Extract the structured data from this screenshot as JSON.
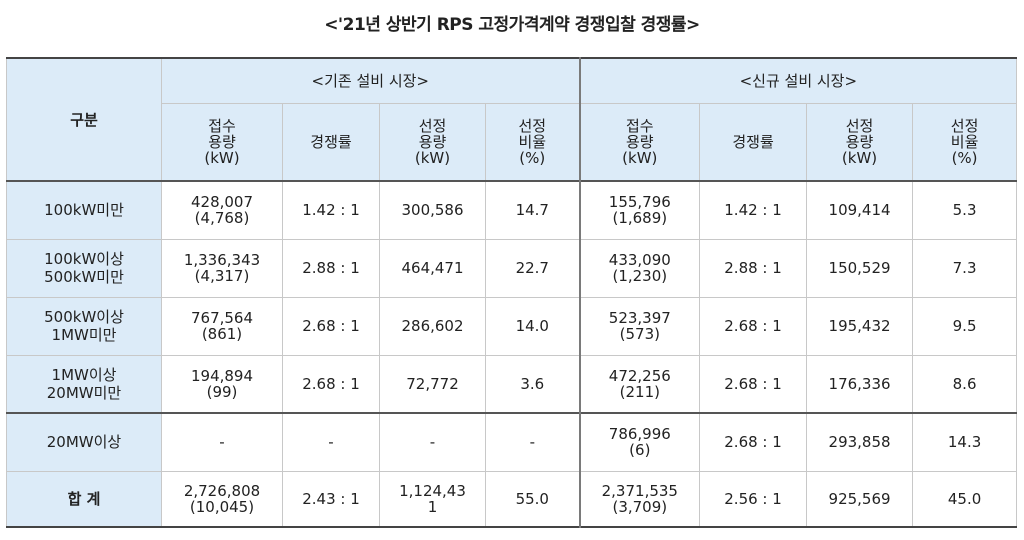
{
  "title": "<'21년 상반기 RPS 고정가격계약 경쟁입찰 경쟁률>",
  "header": {
    "category": "구분",
    "group_existing": "<기존 설비 시장>",
    "group_new": "<신규 설비 시장>",
    "existing_cols": [
      [
        "접수",
        "용량",
        "(kW)"
      ],
      [
        "경쟁률"
      ],
      [
        "선정",
        "용량",
        "(kW)"
      ],
      [
        "선정",
        "비율",
        "(%)"
      ]
    ],
    "new_cols": [
      [
        "접수",
        "용량",
        "(kW)"
      ],
      [
        "경쟁률"
      ],
      [
        "선정",
        "용량",
        "(kW)"
      ],
      [
        "선정",
        "비율",
        "(%)"
      ]
    ]
  },
  "rows": [
    {
      "label": [
        "100kW미만"
      ],
      "existing": {
        "received": "428,007",
        "received_count": "(4,768)",
        "ratio": "1.42 : 1",
        "selected": [
          "300,586"
        ],
        "pct": "14.7"
      },
      "new": {
        "received": "155,796",
        "received_count": "(1,689)",
        "ratio": "1.42 : 1",
        "selected": [
          "109,414"
        ],
        "pct": "5.3"
      }
    },
    {
      "label": [
        "100kW이상",
        "500kW미만"
      ],
      "existing": {
        "received": "1,336,343",
        "received_count": "(4,317)",
        "ratio": "2.88 : 1",
        "selected": [
          "464,471"
        ],
        "pct": "22.7"
      },
      "new": {
        "received": "433,090",
        "received_count": "(1,230)",
        "ratio": "2.88 : 1",
        "selected": [
          "150,529"
        ],
        "pct": "7.3"
      }
    },
    {
      "label": [
        "500kW이상",
        "1MW미만"
      ],
      "existing": {
        "received": "767,564",
        "received_count": "(861)",
        "ratio": "2.68 : 1",
        "selected": [
          "286,602"
        ],
        "pct": "14.0"
      },
      "new": {
        "received": "523,397",
        "received_count": "(573)",
        "ratio": "2.68 : 1",
        "selected": [
          "195,432"
        ],
        "pct": "9.5"
      }
    },
    {
      "label": [
        "1MW이상",
        "20MW미만"
      ],
      "existing": {
        "received": "194,894",
        "received_count": "(99)",
        "ratio": "2.68 : 1",
        "selected": [
          "72,772"
        ],
        "pct": "3.6"
      },
      "new": {
        "received": "472,256",
        "received_count": "(211)",
        "ratio": "2.68 : 1",
        "selected": [
          "176,336"
        ],
        "pct": "8.6"
      }
    },
    {
      "label": [
        "20MW이상"
      ],
      "existing": {
        "received": "-",
        "received_count": "",
        "ratio": "-",
        "selected": [
          "-"
        ],
        "pct": "-"
      },
      "new": {
        "received": "786,996",
        "received_count": "(6)",
        "ratio": "2.68 : 1",
        "selected": [
          "293,858"
        ],
        "pct": "14.3"
      }
    },
    {
      "label": [
        "합 계"
      ],
      "existing": {
        "received": "2,726,808",
        "received_count": "(10,045)",
        "ratio": "2.43 : 1",
        "selected": [
          "1,124,43",
          "1"
        ],
        "pct": "55.0"
      },
      "new": {
        "received": "2,371,535",
        "received_count": "(3,709)",
        "ratio": "2.56 : 1",
        "selected": [
          "925,569"
        ],
        "pct": "45.0"
      }
    }
  ]
}
